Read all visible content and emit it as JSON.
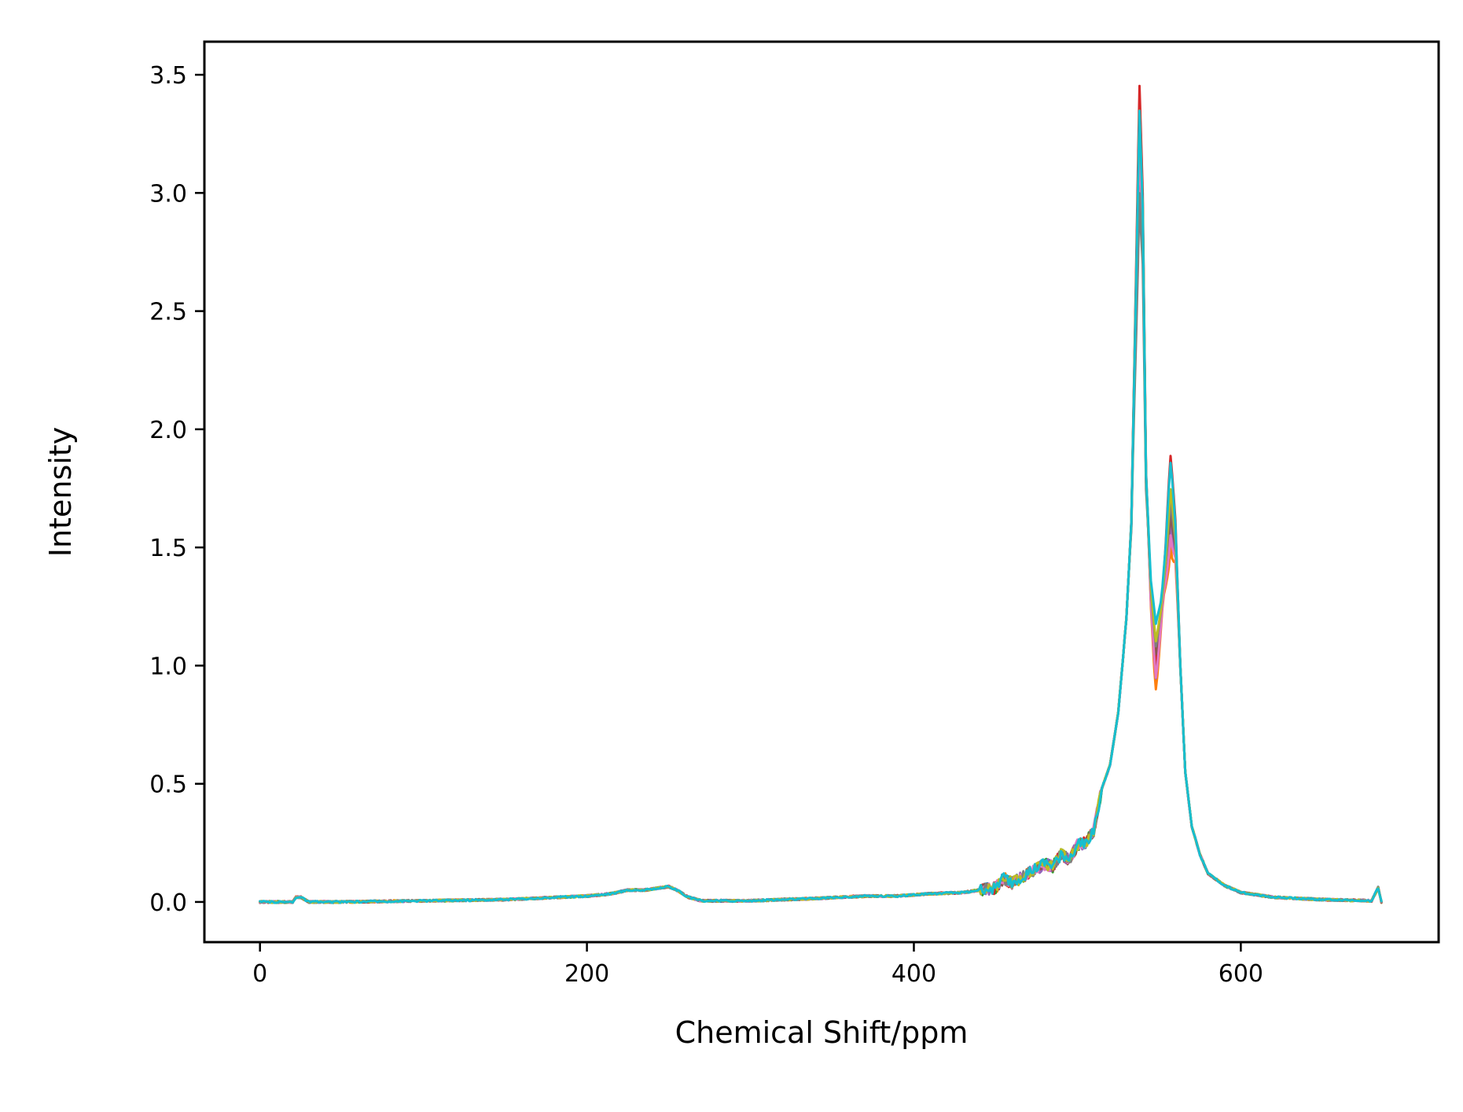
{
  "chart_data": {
    "type": "line",
    "title": "",
    "xlabel": "Chemical Shift/ppm",
    "ylabel": "Intensity",
    "xlim": [
      -34,
      721
    ],
    "ylim": [
      -0.17,
      3.64
    ],
    "xticks": [
      0,
      200,
      400,
      600
    ],
    "yticks": [
      0.0,
      0.5,
      1.0,
      1.5,
      2.0,
      2.5,
      3.0,
      3.5
    ],
    "xtick_labels": [
      "0",
      "200",
      "400",
      "600"
    ],
    "ytick_labels": [
      "0.0",
      "0.5",
      "1.0",
      "1.5",
      "2.0",
      "2.5",
      "3.0",
      "3.5"
    ],
    "grid": false,
    "legend": "none",
    "x_range": [
      0,
      686
    ],
    "peak_profile": {
      "x": [
        0,
        20,
        22,
        25,
        30,
        50,
        100,
        150,
        200,
        215,
        225,
        235,
        245,
        250,
        255,
        262,
        270,
        280,
        300,
        340,
        370,
        390,
        410,
        430,
        450,
        455,
        460,
        465,
        470,
        475,
        480,
        485,
        490,
        495,
        500,
        505,
        510,
        515,
        520,
        525,
        530,
        533,
        536,
        538,
        540,
        542,
        545,
        548,
        551,
        554,
        557,
        560,
        563,
        566,
        570,
        575,
        580,
        590,
        600,
        620,
        650,
        680,
        684,
        686
      ],
      "y": [
        0.0,
        0.0,
        0.02,
        0.02,
        0.0,
        0.0,
        0.005,
        0.01,
        0.025,
        0.035,
        0.05,
        0.05,
        0.06,
        0.065,
        0.05,
        0.02,
        0.005,
        0.005,
        0.005,
        0.015,
        0.025,
        0.025,
        0.035,
        0.04,
        0.06,
        0.1,
        0.08,
        0.1,
        0.12,
        0.14,
        0.16,
        0.15,
        0.2,
        0.18,
        0.24,
        0.25,
        0.3,
        0.48,
        0.58,
        0.8,
        1.2,
        1.6,
        2.6,
        3.3,
        2.9,
        1.8,
        1.35,
        1.15,
        1.25,
        1.45,
        1.75,
        1.55,
        1.0,
        0.55,
        0.32,
        0.2,
        0.12,
        0.07,
        0.04,
        0.02,
        0.01,
        0.005,
        0.06,
        0.0
      ]
    },
    "series": [
      {
        "color": "#1f77b4",
        "peak1": 3.3,
        "valley": 1.05,
        "peak2": 1.7
      },
      {
        "color": "#ff7f0e",
        "peak1": 3.38,
        "valley": 0.9,
        "peak2": 1.5
      },
      {
        "color": "#2ca02c",
        "peak1": 3.28,
        "valley": 1.0,
        "peak2": 1.65
      },
      {
        "color": "#d62728",
        "peak1": 3.45,
        "valley": 1.0,
        "peak2": 1.89
      },
      {
        "color": "#9467bd",
        "peak1": 3.25,
        "valley": 0.95,
        "peak2": 1.6
      },
      {
        "color": "#8c564b",
        "peak1": 3.2,
        "valley": 1.05,
        "peak2": 1.65
      },
      {
        "color": "#e377c2",
        "peak1": 3.22,
        "valley": 0.95,
        "peak2": 1.55
      },
      {
        "color": "#7f7f7f",
        "peak1": 3.0,
        "valley": 1.08,
        "peak2": 1.7
      },
      {
        "color": "#bcbd22",
        "peak1": 3.35,
        "valley": 1.1,
        "peak2": 1.75
      },
      {
        "color": "#17becf",
        "peak1": 3.35,
        "valley": 1.18,
        "peak2": 1.86
      }
    ]
  }
}
